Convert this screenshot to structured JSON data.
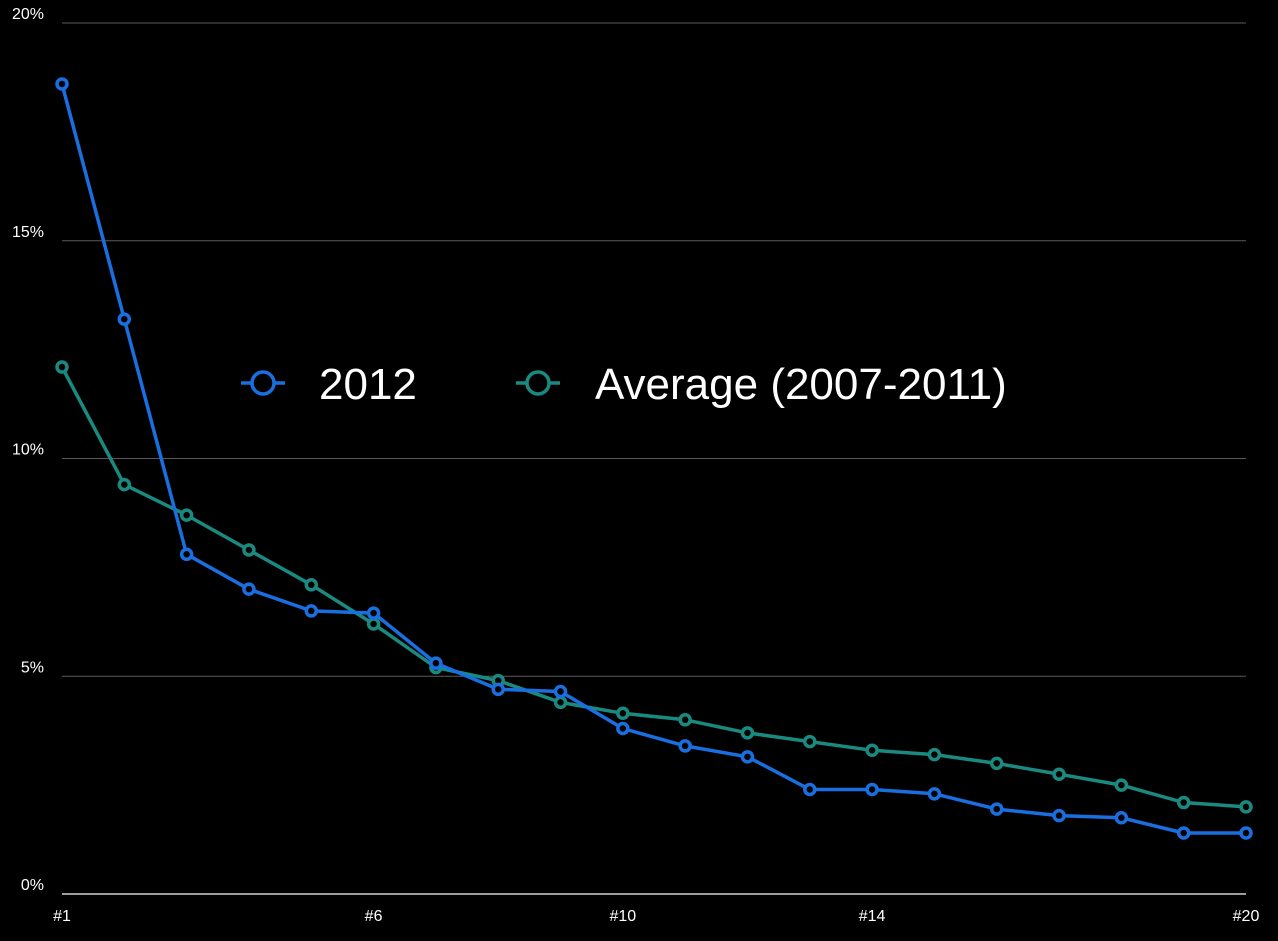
{
  "chart_data": {
    "type": "line",
    "x_tick_labels": [
      "#1",
      "#6",
      "#10",
      "#14",
      "#20"
    ],
    "x_tick_positions": [
      1,
      6,
      10,
      14,
      20
    ],
    "x_range": [
      1,
      20
    ],
    "y_tick_labels": [
      "0%",
      "5%",
      "10%",
      "15%",
      "20%"
    ],
    "y_tick_values": [
      0,
      5,
      10,
      15,
      20
    ],
    "ylim": [
      0,
      20
    ],
    "grid": true,
    "legend_position": "center",
    "series": [
      {
        "name": "2012",
        "color": "#1a6fe0",
        "x": [
          1,
          2,
          3,
          4,
          5,
          6,
          7,
          8,
          9,
          10,
          11,
          12,
          13,
          14,
          15,
          16,
          17,
          18,
          19,
          20
        ],
        "values": [
          18.6,
          13.2,
          7.8,
          7.0,
          6.5,
          6.45,
          5.3,
          4.7,
          4.65,
          3.8,
          3.4,
          3.15,
          2.4,
          2.4,
          2.3,
          1.95,
          1.8,
          1.75,
          1.4,
          1.4
        ]
      },
      {
        "name": "Average (2007-2011)",
        "color": "#1a8a80",
        "x": [
          1,
          2,
          3,
          4,
          5,
          6,
          7,
          8,
          9,
          10,
          11,
          12,
          13,
          14,
          15,
          16,
          17,
          18,
          19,
          20
        ],
        "values": [
          12.1,
          9.4,
          8.7,
          7.9,
          7.1,
          6.2,
          5.2,
          4.9,
          4.4,
          4.15,
          4.0,
          3.7,
          3.5,
          3.3,
          3.2,
          3.0,
          2.75,
          2.5,
          2.1,
          2.0
        ]
      }
    ]
  }
}
